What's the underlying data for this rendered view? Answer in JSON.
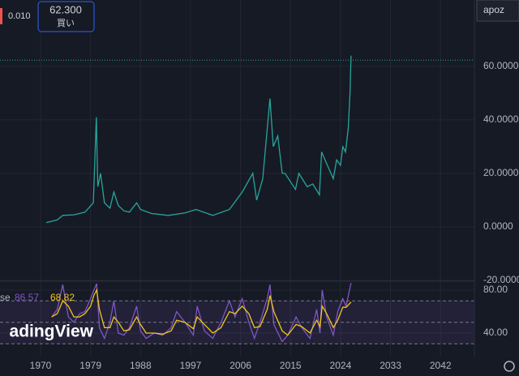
{
  "header": {
    "spread": "0.010",
    "buy_price": "62.300",
    "buy_label": "買い",
    "symbol": "apoz"
  },
  "watermark": "adingView",
  "indicator_label": "se",
  "chart_data": [
    {
      "type": "line",
      "color": "#26a69a",
      "x": [
        1971,
        1973,
        1974,
        1976,
        1978,
        1979.5,
        1980.05,
        1980.3,
        1980.8,
        1981.5,
        1982.5,
        1983.2,
        1984,
        1985,
        1986,
        1987.3,
        1988,
        1990,
        1993,
        1996,
        1998,
        2001,
        2004,
        2006.3,
        2008.2,
        2008.9,
        2010,
        2011.3,
        2011.9,
        2012.7,
        2013.5,
        2014,
        2015.9,
        2016.5,
        2018,
        2019,
        2020.2,
        2020.6,
        2021,
        2022.7,
        2023.3,
        2024,
        2024.4,
        2024.9,
        2025.4,
        2025.7,
        2025.9
      ],
      "values": [
        1.6,
        2.6,
        4.3,
        4.5,
        5.5,
        9,
        41,
        15,
        20,
        9,
        7,
        13,
        8,
        6,
        5.5,
        9,
        6.5,
        5,
        4.3,
        5.2,
        6.5,
        4.3,
        6.5,
        13,
        20,
        10,
        18,
        48,
        30,
        34,
        20,
        20,
        14,
        20,
        15,
        16,
        12,
        28,
        26,
        18,
        25,
        23,
        30,
        28,
        37,
        50,
        64
      ],
      "price_line": 62.3,
      "xlim": [
        1962.7,
        2048.1
      ],
      "xticks": [
        1970,
        1979,
        1988,
        1997,
        2006,
        2015,
        2024,
        2033,
        2042
      ],
      "ylim": [
        -20,
        84.8
      ],
      "yticks": [
        {
          "value": 60,
          "label": "60.0000"
        },
        {
          "value": 40,
          "label": "40.0000"
        },
        {
          "value": 20,
          "label": "20.0000"
        },
        {
          "value": 0,
          "label": "0.0000"
        },
        {
          "value": -20,
          "label": "-20.0000"
        }
      ]
    },
    {
      "type": "line",
      "x": [
        1972,
        1973,
        1974,
        1975,
        1976,
        1977,
        1978,
        1979,
        1979.6,
        1980.1,
        1980.6,
        1981.5,
        1982.5,
        1983.2,
        1984,
        1985,
        1986,
        1987.3,
        1988,
        1989,
        1990.5,
        1992,
        1993.5,
        1994.5,
        1996,
        1997.5,
        1998.2,
        1999.5,
        2001,
        2002.5,
        2004,
        2005,
        2006.3,
        2007.5,
        2008.5,
        2009.5,
        2010.8,
        2011.3,
        2012,
        2013.5,
        2014.5,
        2016,
        2017,
        2018.5,
        2019.7,
        2020.3,
        2020.7,
        2021.5,
        2022.7,
        2023.5,
        2024.4,
        2025,
        2025.9
      ],
      "series": [
        {
          "color": "#7e57c2",
          "last_value": 86.57,
          "values": [
            55,
            62,
            85,
            55,
            50,
            58,
            60,
            72,
            80,
            86,
            45,
            35,
            50,
            70,
            40,
            38,
            45,
            65,
            42,
            35,
            40,
            38,
            45,
            60,
            50,
            38,
            65,
            42,
            35,
            50,
            70,
            55,
            72,
            50,
            35,
            50,
            72,
            85,
            48,
            32,
            38,
            55,
            45,
            35,
            62,
            40,
            80,
            55,
            38,
            60,
            72,
            65,
            86.57
          ]
        },
        {
          "color": "#f5c518",
          "last_value": 68.82,
          "values": [
            55,
            58,
            70,
            65,
            55,
            55,
            58,
            65,
            75,
            80,
            62,
            45,
            45,
            55,
            50,
            42,
            43,
            55,
            48,
            40,
            40,
            39,
            42,
            52,
            50,
            44,
            55,
            48,
            40,
            45,
            60,
            58,
            65,
            58,
            45,
            46,
            62,
            75,
            60,
            42,
            38,
            48,
            46,
            40,
            52,
            46,
            65,
            58,
            45,
            52,
            64,
            64,
            68.82
          ]
        }
      ],
      "levels": [
        70,
        50,
        30
      ],
      "ylim": [
        18.1,
        87.5
      ],
      "yticks": [
        {
          "value": 80,
          "label": "80.00"
        },
        {
          "value": 40,
          "label": "40.00"
        }
      ]
    }
  ]
}
